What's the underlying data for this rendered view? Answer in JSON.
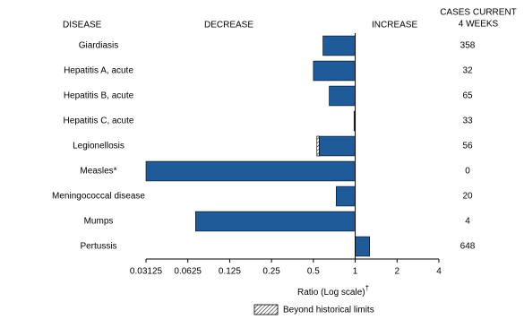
{
  "chart_data": {
    "type": "bar",
    "orientation": "horizontal",
    "log_scale": true,
    "log_base": 2,
    "headers": {
      "disease": "DISEASE",
      "decrease": "DECREASE",
      "increase": "INCREASE",
      "cases": [
        "CASES CURRENT",
        "4 WEEKS"
      ]
    },
    "categories": [
      "Giardiasis",
      "Hepatitis A, acute",
      "Hepatitis B, acute",
      "Hepatitis C, acute",
      "Legionellosis",
      "Measles*",
      "Meningococcal disease",
      "Mumps",
      "Pertussis"
    ],
    "values": [
      0.586,
      0.5,
      0.65,
      0.98,
      0.53,
      0.03125,
      0.73,
      0.071,
      1.27
    ],
    "beyond_limit": [
      null,
      null,
      null,
      null,
      0.55,
      null,
      null,
      null,
      null
    ],
    "cases": [
      358,
      32,
      65,
      33,
      56,
      0,
      20,
      4,
      648
    ],
    "color": "#1f5b98",
    "xlim": [
      0.03125,
      4
    ],
    "xticks": [
      0.03125,
      0.0625,
      0.125,
      0.25,
      0.5,
      1,
      2,
      4
    ],
    "baseline": 1,
    "xlabel": "Ratio (Log scale)",
    "xlabel_mark": "†",
    "legend": "Beyond historical limits"
  }
}
